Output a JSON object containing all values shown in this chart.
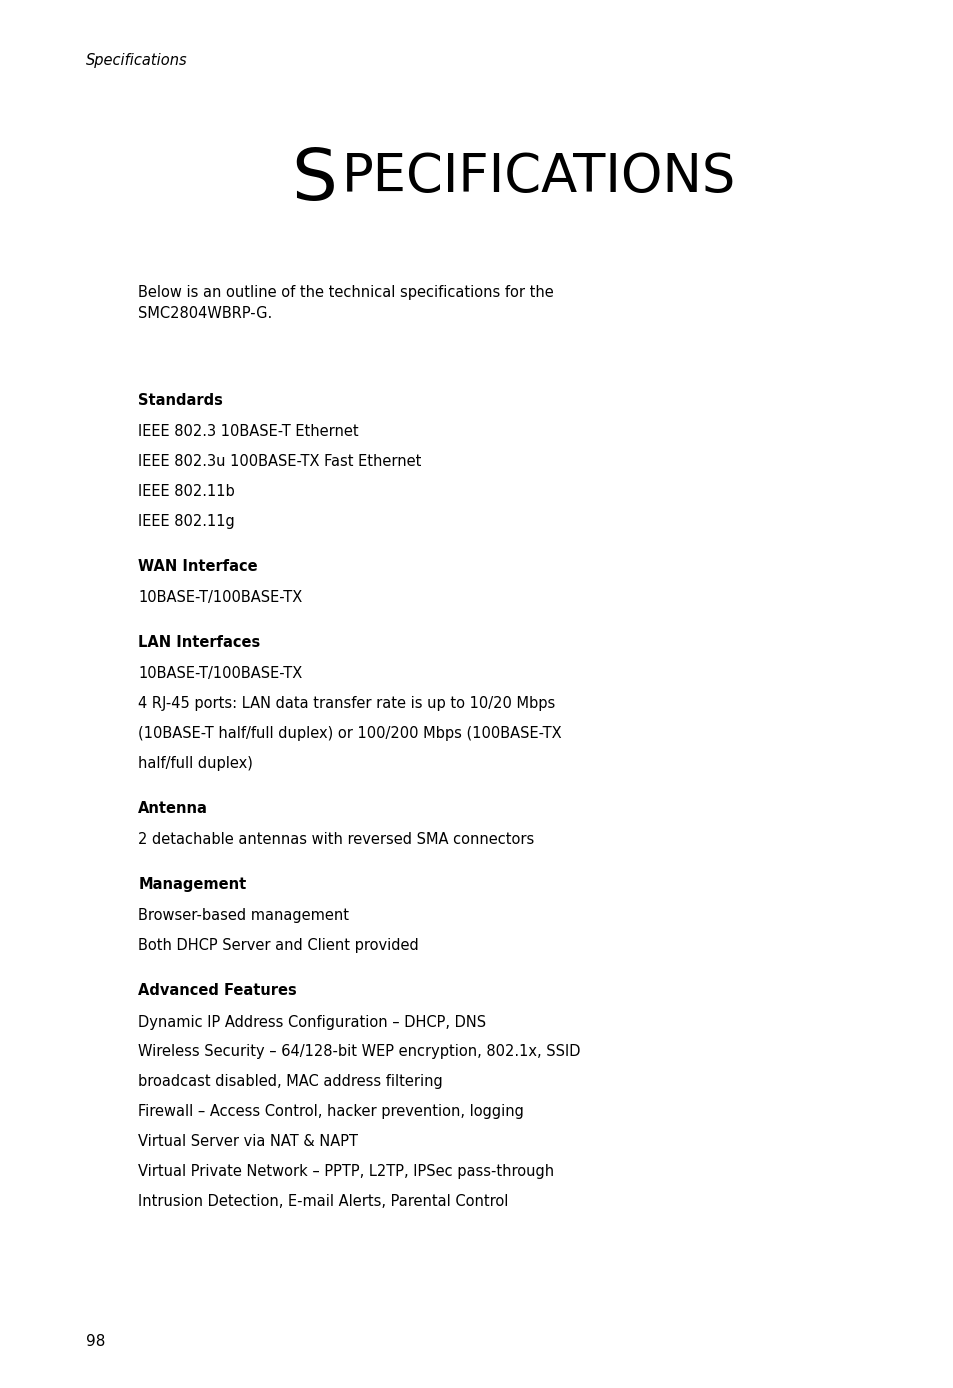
{
  "background_color": "#ffffff",
  "page_width": 9.54,
  "page_height": 13.88,
  "header_italic": "Specifications",
  "main_title_first_letter": "S",
  "main_title_rest": "PECIFICATIONS",
  "intro_text": "Below is an outline of the technical specifications for the\nSMC2804WBRP-G.",
  "sections": [
    {
      "heading": "Standards",
      "lines": [
        "IEEE 802.3 10BASE-T Ethernet",
        "IEEE 802.3u 100BASE-TX Fast Ethernet",
        "IEEE 802.11b",
        "IEEE 802.11g"
      ]
    },
    {
      "heading": "WAN Interface",
      "lines": [
        "10BASE-T/100BASE-TX"
      ]
    },
    {
      "heading": "LAN Interfaces",
      "lines": [
        "10BASE-T/100BASE-TX",
        "4 RJ-45 ports: LAN data transfer rate is up to 10/20 Mbps\n(10BASE-T half/full duplex) or 100/200 Mbps (100BASE-TX\nhalf/full duplex)"
      ]
    },
    {
      "heading": "Antenna",
      "lines": [
        "2 detachable antennas with reversed SMA connectors"
      ]
    },
    {
      "heading": "Management",
      "lines": [
        "Browser-based management",
        "Both DHCP Server and Client provided"
      ]
    },
    {
      "heading": "Advanced Features",
      "lines": [
        "Dynamic IP Address Configuration – DHCP, DNS",
        "Wireless Security – 64/128-bit WEP encryption, 802.1x, SSID\nbroadcast disabled, MAC address filtering",
        "Firewall – Access Control, hacker prevention, logging",
        "Virtual Server via NAT & NAPT",
        "Virtual Private Network – PPTP, L2TP, IPSec pass-through",
        "Intrusion Detection, E-mail Alerts, Parental Control"
      ]
    }
  ],
  "page_number": "98",
  "text_color": "#000000",
  "header_color": "#000000"
}
